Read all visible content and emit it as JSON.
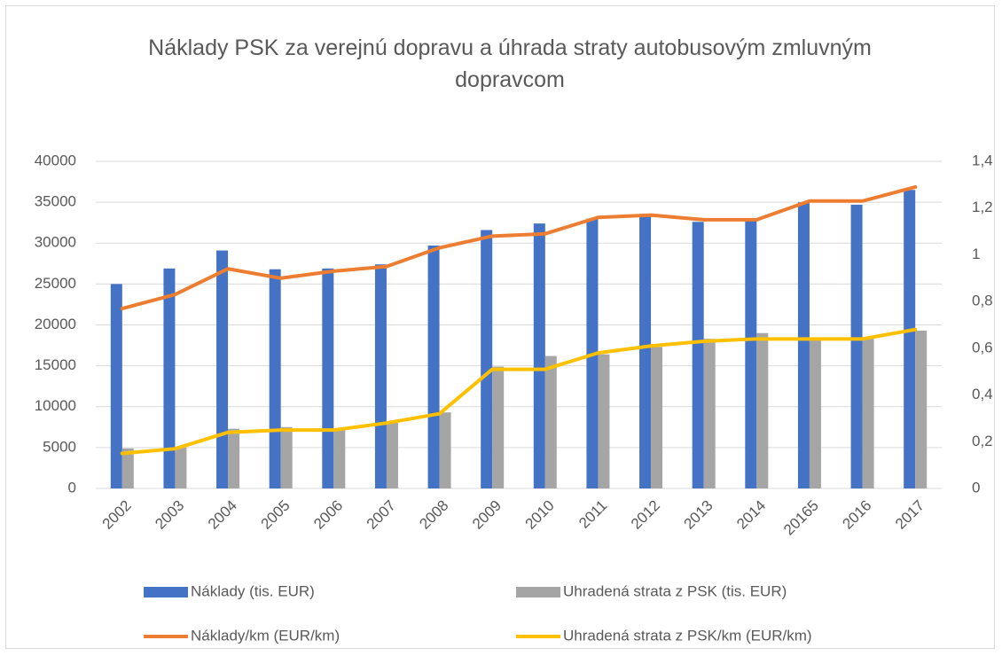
{
  "chart_data": {
    "type": "bar",
    "title": "Náklady PSK za verejnú dopravu a úhrada straty autobusovým zmluvným dopravcom",
    "categories": [
      "2002",
      "2003",
      "2004",
      "2005",
      "2006",
      "2007",
      "2008",
      "2009",
      "2010",
      "2011",
      "2012",
      "2013",
      "2014",
      "20165",
      "2016",
      "2017"
    ],
    "series": [
      {
        "name": "Náklady (tis. EUR)",
        "type": "bar",
        "color": "#4472c4",
        "values": [
          25000,
          26900,
          29100,
          26800,
          26900,
          27400,
          29700,
          31600,
          32400,
          33000,
          33300,
          32600,
          32800,
          35000,
          34700,
          36500
        ]
      },
      {
        "name": "Uhradená strata z PSK (tis. EUR)",
        "type": "bar",
        "color": "#a5a5a5",
        "values": [
          4900,
          5000,
          7300,
          7500,
          7200,
          8100,
          9300,
          14900,
          16200,
          16400,
          17300,
          18300,
          19000,
          18200,
          18500,
          19300
        ]
      },
      {
        "name": "Náklady/km (EUR/km)",
        "type": "line",
        "axis": "y2",
        "color": "#ed7d31",
        "values": [
          0.77,
          0.83,
          0.94,
          0.9,
          0.93,
          0.95,
          1.03,
          1.08,
          1.09,
          1.16,
          1.17,
          1.15,
          1.15,
          1.23,
          1.23,
          1.29
        ]
      },
      {
        "name": "Uhradená strata z PSK/km  (EUR/km)",
        "type": "line",
        "axis": "y2",
        "color": "#ffc000",
        "values": [
          0.15,
          0.17,
          0.24,
          0.25,
          0.25,
          0.28,
          0.32,
          0.51,
          0.51,
          0.58,
          0.61,
          0.63,
          0.64,
          0.64,
          0.64,
          0.68
        ]
      }
    ],
    "ylim": [
      0,
      40000
    ],
    "yticks": [
      0,
      5000,
      10000,
      15000,
      20000,
      25000,
      30000,
      35000,
      40000
    ],
    "y2lim": [
      0,
      1.4
    ],
    "y2ticks": [
      0,
      {
        "value": 0.2,
        "label": "0,2"
      },
      {
        "value": 0.4,
        "label": "0,4"
      },
      {
        "value": 0.6,
        "label": "0,6"
      },
      {
        "value": 0.8,
        "label": "0,8"
      },
      1,
      {
        "value": 1.2,
        "label": "1,2"
      },
      {
        "value": 1.4,
        "label": "1,4"
      }
    ],
    "grid": true,
    "legend": "bottom"
  }
}
